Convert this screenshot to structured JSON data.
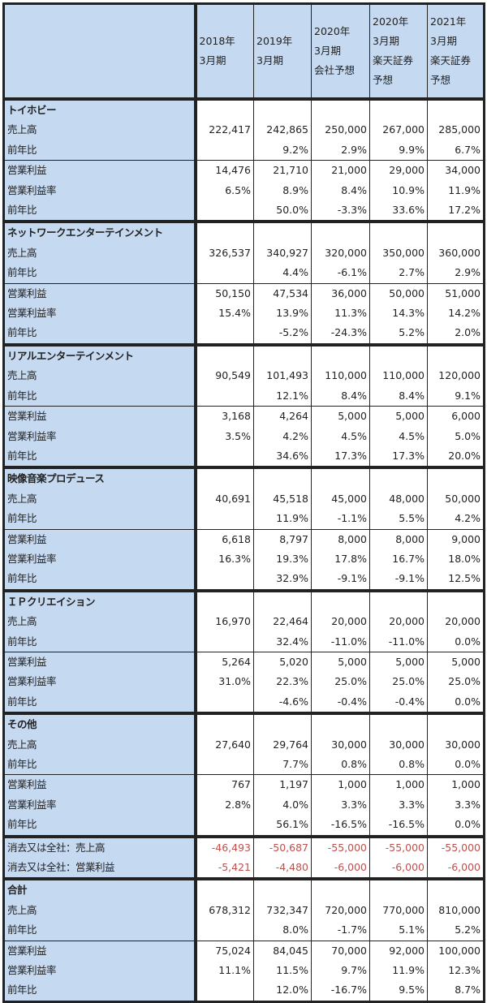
{
  "header": {
    "columns": [
      [
        "2018年",
        "3月期"
      ],
      [
        "2019年",
        "3月期"
      ],
      [
        "2020年",
        "3月期",
        "会社予想"
      ],
      [
        "2020年",
        "3月期",
        "楽天証券",
        "予想"
      ],
      [
        "2021年",
        "3月期",
        "楽天証券",
        "予想"
      ]
    ]
  },
  "row_labels": {
    "sales": "売上高",
    "sales_yoy": "前年比",
    "op": "営業利益",
    "margin": "営業利益率",
    "op_yoy": "前年比"
  },
  "sections": [
    {
      "name": "トイホビー",
      "sales": [
        "222,417",
        "242,865",
        "250,000",
        "267,000",
        "285,000"
      ],
      "sales_yoy": [
        "",
        "9.2%",
        "2.9%",
        "9.9%",
        "6.7%"
      ],
      "op": [
        "14,476",
        "21,710",
        "21,000",
        "29,000",
        "34,000"
      ],
      "margin": [
        "6.5%",
        "8.9%",
        "8.4%",
        "10.9%",
        "11.9%"
      ],
      "op_yoy": [
        "",
        "50.0%",
        "-3.3%",
        "33.6%",
        "17.2%"
      ]
    },
    {
      "name": "ネットワークエンターテインメント",
      "sales": [
        "326,537",
        "340,927",
        "320,000",
        "350,000",
        "360,000"
      ],
      "sales_yoy": [
        "",
        "4.4%",
        "-6.1%",
        "2.7%",
        "2.9%"
      ],
      "op": [
        "50,150",
        "47,534",
        "36,000",
        "50,000",
        "51,000"
      ],
      "margin": [
        "15.4%",
        "13.9%",
        "11.3%",
        "14.3%",
        "14.2%"
      ],
      "op_yoy": [
        "",
        "-5.2%",
        "-24.3%",
        "5.2%",
        "2.0%"
      ]
    },
    {
      "name": "リアルエンターテインメント",
      "sales": [
        "90,549",
        "101,493",
        "110,000",
        "110,000",
        "120,000"
      ],
      "sales_yoy": [
        "",
        "12.1%",
        "8.4%",
        "8.4%",
        "9.1%"
      ],
      "op": [
        "3,168",
        "4,264",
        "5,000",
        "5,000",
        "6,000"
      ],
      "margin": [
        "3.5%",
        "4.2%",
        "4.5%",
        "4.5%",
        "5.0%"
      ],
      "op_yoy": [
        "",
        "34.6%",
        "17.3%",
        "17.3%",
        "20.0%"
      ]
    },
    {
      "name": "映像音楽プロデュース",
      "sales": [
        "40,691",
        "45,518",
        "45,000",
        "48,000",
        "50,000"
      ],
      "sales_yoy": [
        "",
        "11.9%",
        "-1.1%",
        "5.5%",
        "4.2%"
      ],
      "op": [
        "6,618",
        "8,797",
        "8,000",
        "8,000",
        "9,000"
      ],
      "margin": [
        "16.3%",
        "19.3%",
        "17.8%",
        "16.7%",
        "18.0%"
      ],
      "op_yoy": [
        "",
        "32.9%",
        "-9.1%",
        "-9.1%",
        "12.5%"
      ]
    },
    {
      "name": "ＩＰクリエイション",
      "sales": [
        "16,970",
        "22,464",
        "20,000",
        "20,000",
        "20,000"
      ],
      "sales_yoy": [
        "",
        "32.4%",
        "-11.0%",
        "-11.0%",
        "0.0%"
      ],
      "op": [
        "5,264",
        "5,020",
        "5,000",
        "5,000",
        "5,000"
      ],
      "margin": [
        "31.0%",
        "22.3%",
        "25.0%",
        "25.0%",
        "25.0%"
      ],
      "op_yoy": [
        "",
        "-4.6%",
        "-0.4%",
        "-0.4%",
        "0.0%"
      ]
    },
    {
      "name": "その他",
      "sales": [
        "27,640",
        "29,764",
        "30,000",
        "30,000",
        "30,000"
      ],
      "sales_yoy": [
        "",
        "7.7%",
        "0.8%",
        "0.8%",
        "0.0%"
      ],
      "op": [
        "767",
        "1,197",
        "1,000",
        "1,000",
        "1,000"
      ],
      "margin": [
        "2.8%",
        "4.0%",
        "3.3%",
        "3.3%",
        "3.3%"
      ],
      "op_yoy": [
        "",
        "56.1%",
        "-16.5%",
        "-16.5%",
        "0.0%"
      ]
    }
  ],
  "eliminations": [
    {
      "label": "消去又は全社：売上高",
      "values": [
        "-46,493",
        "-50,687",
        "-55,000",
        "-55,000",
        "-55,000"
      ]
    },
    {
      "label": "消去又は全社：営業利益",
      "values": [
        "-5,421",
        "-4,480",
        "-6,000",
        "-6,000",
        "-6,000"
      ]
    }
  ],
  "total": {
    "name": "合計",
    "sales": [
      "678,312",
      "732,347",
      "720,000",
      "770,000",
      "810,000"
    ],
    "sales_yoy": [
      "",
      "8.0%",
      "-1.7%",
      "5.1%",
      "5.2%"
    ],
    "op": [
      "75,024",
      "84,045",
      "70,000",
      "92,000",
      "100,000"
    ],
    "margin": [
      "11.1%",
      "11.5%",
      "9.7%",
      "11.9%",
      "12.3%"
    ],
    "op_yoy": [
      "",
      "12.0%",
      "-16.7%",
      "9.5%",
      "8.7%"
    ]
  },
  "colors": {
    "header_bg": "#c5d9f1",
    "negative": "#c0504d"
  }
}
